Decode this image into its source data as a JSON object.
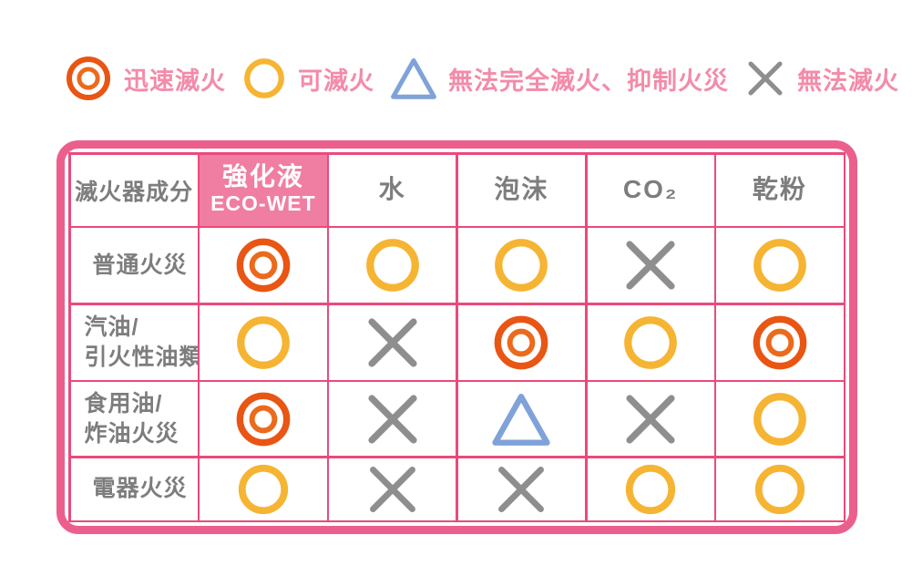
{
  "legend": {
    "items": [
      {
        "symbol": "double-circle",
        "label": "迅速滅火"
      },
      {
        "symbol": "circle",
        "label": "可滅火"
      },
      {
        "symbol": "triangle",
        "label": "無法完全滅火、抑制火災"
      },
      {
        "symbol": "cross",
        "label": "無法滅火"
      }
    ]
  },
  "table": {
    "corner_header": "滅火器成分",
    "columns": [
      {
        "line1": "強化液",
        "line2": "ECO-WET",
        "highlight": true
      },
      {
        "line1": "水",
        "line2": "",
        "highlight": false
      },
      {
        "line1": "泡沫",
        "line2": "",
        "highlight": false
      },
      {
        "line1": "CO₂",
        "line2": "",
        "highlight": false
      },
      {
        "line1": "乾粉",
        "line2": "",
        "highlight": false
      }
    ],
    "rows": [
      {
        "label1": "普通火災",
        "label2": "",
        "cells": [
          "double-circle",
          "circle",
          "circle",
          "cross",
          "circle"
        ]
      },
      {
        "label1": "汽油/",
        "label2": "引火性油類",
        "cells": [
          "circle",
          "cross",
          "double-circle",
          "circle",
          "double-circle"
        ]
      },
      {
        "label1": "食用油/",
        "label2": "炸油火災",
        "cells": [
          "double-circle",
          "cross",
          "triangle",
          "cross",
          "circle"
        ]
      },
      {
        "label1": "電器火災",
        "label2": "",
        "cells": [
          "circle",
          "cross",
          "cross",
          "circle",
          "circle"
        ]
      }
    ]
  },
  "colors": {
    "border_pink": "#EC5F8C",
    "grid_pink": "#EB4A7B",
    "highlight_pink": "#F07EA2",
    "legend_text_pink": "#F38BA9",
    "text_gray": "#7D7D7D",
    "symbol_orange": "#E95513",
    "symbol_orange_inner": "#EB6A1C",
    "symbol_yellow": "#F6B433",
    "symbol_gray": "#8E8E8E",
    "symbol_blue": "#7FA2D8"
  },
  "chart_data": {
    "type": "table",
    "title": "",
    "legend_entries": [
      {
        "symbol": "double-circle",
        "meaning": "迅速滅火"
      },
      {
        "symbol": "circle",
        "meaning": "可滅火"
      },
      {
        "symbol": "triangle",
        "meaning": "無法完全滅火、抑制火災"
      },
      {
        "symbol": "cross",
        "meaning": "無法滅火"
      }
    ],
    "columns": [
      "滅火器成分",
      "強化液 ECO-WET",
      "水",
      "泡沫",
      "CO₂",
      "乾粉"
    ],
    "rows": [
      {
        "category": "普通火災",
        "values": [
          "double-circle",
          "circle",
          "circle",
          "cross",
          "circle"
        ]
      },
      {
        "category": "汽油/引火性油類",
        "values": [
          "circle",
          "cross",
          "double-circle",
          "circle",
          "double-circle"
        ]
      },
      {
        "category": "食用油/炸油火災",
        "values": [
          "double-circle",
          "cross",
          "triangle",
          "cross",
          "circle"
        ]
      },
      {
        "category": "電器火災",
        "values": [
          "circle",
          "cross",
          "cross",
          "circle",
          "circle"
        ]
      }
    ]
  }
}
